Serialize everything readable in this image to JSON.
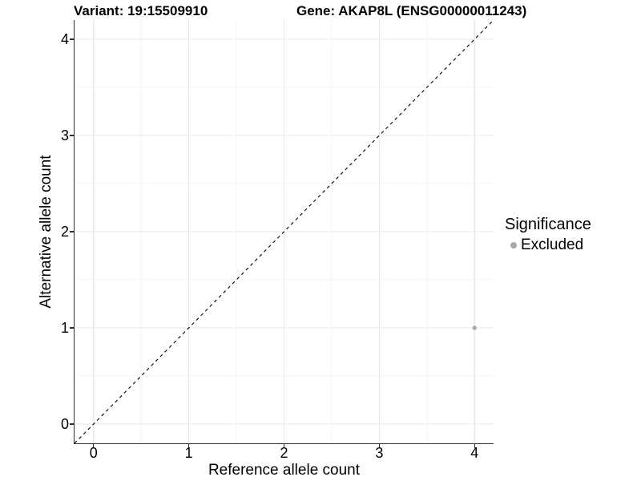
{
  "figure": {
    "background": "#ffffff"
  },
  "chart_data": {
    "type": "scatter",
    "titles": {
      "variant": "Variant: 19:15509910",
      "gene": "Gene: AKAP8L (ENSG00000011243)"
    },
    "xlabel": "Reference allele count",
    "ylabel": "Alternative allele count",
    "xlim": [
      -0.2,
      4.2
    ],
    "ylim": [
      -0.2,
      4.2
    ],
    "x_major_ticks": [
      0,
      1,
      2,
      3,
      4
    ],
    "y_major_ticks": [
      0,
      1,
      2,
      3,
      4
    ],
    "x_minor_gridlines": [
      0.5,
      1.5,
      2.5,
      3.5
    ],
    "y_minor_gridlines": [
      0.5,
      1.5,
      2.5,
      3.5
    ],
    "grid": "major and minor gridlines on white panel, left/bottom axis lines only",
    "identity_line": {
      "from": [
        -0.2,
        -0.2
      ],
      "to": [
        4.2,
        4.2
      ],
      "style": "dashed",
      "color": "#000000"
    },
    "series": [
      {
        "name": "Excluded",
        "marker": "circle",
        "color": "#a9a9a9",
        "points": [
          {
            "x": 4,
            "y": 1
          }
        ]
      }
    ],
    "legend": {
      "title": "Significance",
      "position": "right-middle",
      "entries": [
        {
          "label": "Excluded",
          "color": "#a9a9a9"
        }
      ]
    }
  },
  "colors": {
    "axis_line": "#2f2f2f",
    "tick_mark": "#2f2f2f",
    "grid_major": "#e8e8e8",
    "grid_minor": "#f4f4f4",
    "point": "#a9a9a9",
    "text": "#000000"
  }
}
